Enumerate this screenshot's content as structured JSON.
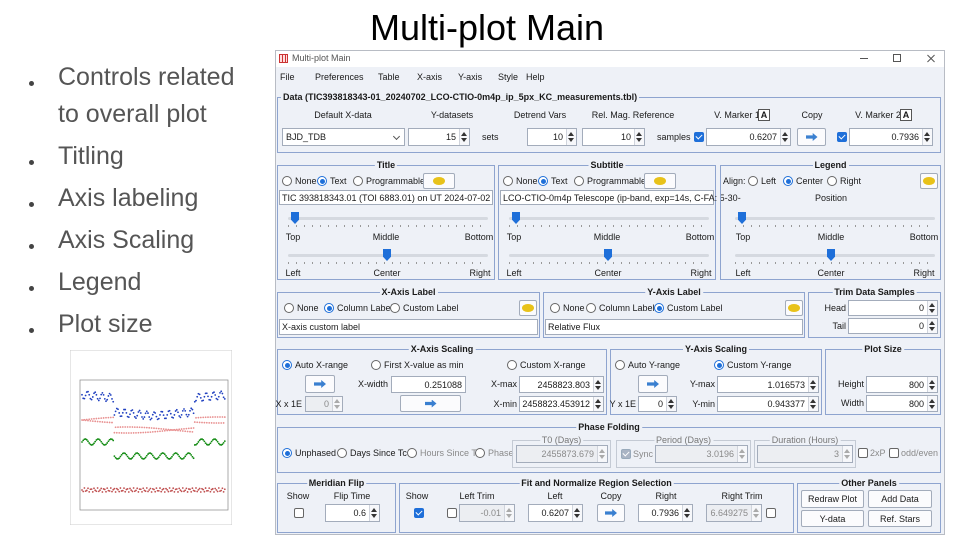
{
  "slide": {
    "title": "Multi-plot Main",
    "bullets": [
      "Controls related to overall plot",
      "Titling",
      "Axis labeling",
      "Axis Scaling",
      "Legend",
      "Plot size"
    ]
  },
  "window": {
    "title": "Multi-plot Main",
    "menu": [
      "File",
      "Preferences",
      "Table",
      "X-axis",
      "Y-axis",
      "Style",
      "Help"
    ]
  },
  "data": {
    "title": "Data (TIC393818343-01_20240702_LCO-CTIO-0m4p_ip_5px_KC_measurements.tbl)",
    "headers": [
      "Default X-data",
      "Y-datasets",
      "Detrend Vars",
      "Rel. Mag. Reference",
      "V. Marker 1",
      "Copy",
      "V. Marker 2"
    ],
    "x_data": "BJD_TDB",
    "y_datasets": "15",
    "sets": "sets",
    "detrend": "10",
    "rel_mag": "10",
    "samples": "samples",
    "marker1": "0.6207",
    "marker2": "0.7936",
    "a": "A"
  },
  "title_panel": {
    "title": "Title",
    "modes": [
      "None",
      "Text",
      "Programmable"
    ],
    "text": "TIC 393818343.01 (TOI 6883.01) on UT 2024-07-02",
    "vpos": [
      "Top",
      "Middle",
      "Bottom"
    ],
    "hpos": [
      "Left",
      "Center",
      "Right"
    ]
  },
  "subtitle_panel": {
    "title": "Subtitle",
    "modes": [
      "None",
      "Text",
      "Programmable"
    ],
    "text": "LCO-CTIO-0m4p Telescope (ip-band, exp=14s, C-FA: 5-30-",
    "vpos": [
      "Top",
      "Middle",
      "Bottom"
    ],
    "hpos": [
      "Left",
      "Center",
      "Right"
    ]
  },
  "legend_panel": {
    "title": "Legend",
    "align": "Align:",
    "modes": [
      "Left",
      "Center",
      "Right"
    ],
    "position": "Position",
    "vpos": [
      "Top",
      "Middle",
      "Bottom"
    ],
    "hpos": [
      "Left",
      "Center",
      "Right"
    ]
  },
  "x_label": {
    "title": "X-Axis Label",
    "modes": [
      "None",
      "Column Label",
      "Custom Label"
    ],
    "text": "X-axis custom label"
  },
  "y_label": {
    "title": "Y-Axis Label",
    "modes": [
      "None",
      "Column Label",
      "Custom Label"
    ],
    "text": "Relative Flux"
  },
  "trim": {
    "title": "Trim Data Samples",
    "head": "Head",
    "head_value": "0",
    "tail": "Tail",
    "tail_value": "0"
  },
  "x_scaling": {
    "title": "X-Axis Scaling",
    "modes": [
      "Auto X-range",
      "First X-value as min",
      "Custom X-range"
    ],
    "width_label": "X-width",
    "width": "0.251088",
    "max_label": "X-max",
    "max": "2458823.803",
    "min_label": "X-min",
    "min": "2458823.453912",
    "exp_label": "X x 1E",
    "exp": "0"
  },
  "y_scaling": {
    "title": "Y-Axis Scaling",
    "modes": [
      "Auto Y-range",
      "Custom Y-range"
    ],
    "max_label": "Y-max",
    "max": "1.016573",
    "min_label": "Y-min",
    "min": "0.943377",
    "exp_label": "Y x 1E",
    "exp": "0"
  },
  "plot_size": {
    "title": "Plot Size",
    "height_label": "Height",
    "height": "800",
    "width_label": "Width",
    "width": "800"
  },
  "phase": {
    "title": "Phase Folding",
    "modes": [
      "Unphased",
      "Days Since Tc",
      "Hours Since Tc",
      "Phase"
    ],
    "t0_label": "T0 (Days)",
    "t0": "2455873.679",
    "period_label": "Period (Days)",
    "sync": "Sync",
    "period": "3.0196",
    "duration_label": "Duration (Hours)",
    "duration": "3",
    "double": "2xP",
    "odd_even": "odd/even"
  },
  "meridian": {
    "title": "Meridian Flip",
    "show": "Show",
    "flip_label": "Flip Time",
    "flip": "0.6"
  },
  "fit": {
    "title": "Fit and Normalize Region Selection",
    "show": "Show",
    "left_trim_label": "Left Trim",
    "left_trim": "-0.01",
    "left_label": "Left",
    "left": "0.6207",
    "copy": "Copy",
    "right_label": "Right",
    "right": "0.7936",
    "right_trim_label": "Right Trim",
    "right_trim": "6.649275"
  },
  "other": {
    "title": "Other Panels",
    "buttons": [
      "Redraw Plot",
      "Add Data",
      "Y-data",
      "Ref. Stars"
    ]
  }
}
